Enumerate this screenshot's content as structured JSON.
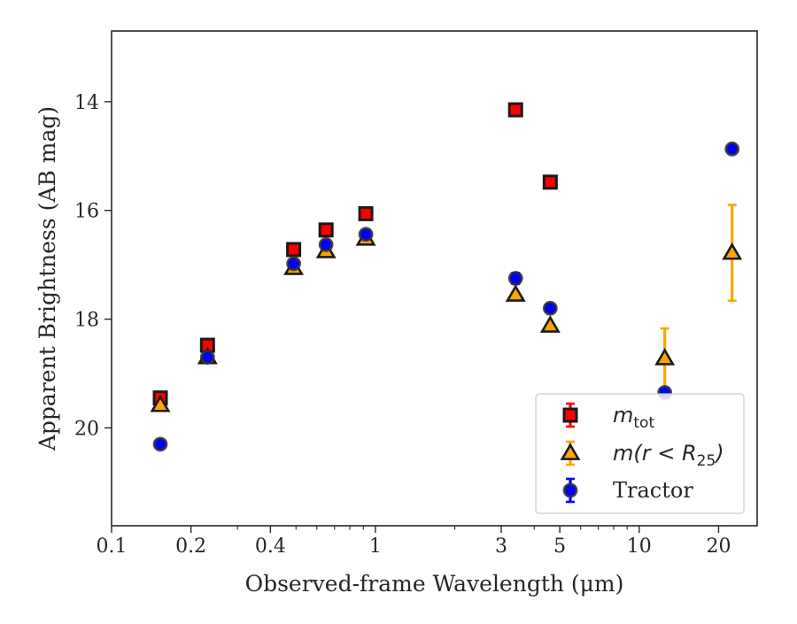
{
  "chart_data": {
    "type": "scatter",
    "xlabel": "Observed-frame Wavelength (μm)",
    "ylabel": "Apparent Brightness (AB mag)",
    "xscale": "log",
    "xlim": [
      0.1,
      28
    ],
    "ylim": [
      21.8,
      12.7
    ],
    "y_inverted": true,
    "x_ticks": [
      0.1,
      0.2,
      0.4,
      1,
      3,
      5,
      10,
      20
    ],
    "x_tick_labels": [
      "0.1",
      "0.2",
      "0.4",
      "1",
      "3",
      "5",
      "10",
      "20"
    ],
    "y_ticks": [
      14,
      16,
      18,
      20
    ],
    "y_tick_labels": [
      "14",
      "16",
      "18",
      "20"
    ],
    "grid": false,
    "legend_position": "bottom-right",
    "series": [
      {
        "name": "m_tot",
        "legend_main": "m",
        "legend_sub": "tot",
        "marker": "square",
        "color": "#ff0000",
        "edge_color": "#1a1a1a",
        "points": [
          {
            "x": 0.153,
            "y": 19.45,
            "err": 0.03
          },
          {
            "x": 0.231,
            "y": 18.48,
            "err": 0.03
          },
          {
            "x": 0.49,
            "y": 16.72,
            "err": 0.02
          },
          {
            "x": 0.65,
            "y": 16.36,
            "err": 0.02
          },
          {
            "x": 0.92,
            "y": 16.06,
            "err": 0.02
          },
          {
            "x": 3.4,
            "y": 14.15,
            "err": 0.02
          },
          {
            "x": 4.6,
            "y": 15.48,
            "err": 0.02
          }
        ]
      },
      {
        "name": "m(r<R_25)",
        "legend_main": "m(r < R",
        "legend_sub": "25",
        "legend_tail": ")",
        "marker": "triangle",
        "color": "#ffa500",
        "edge_color": "#1a1a1a",
        "points": [
          {
            "x": 0.153,
            "y": 19.58,
            "err": 0.04
          },
          {
            "x": 0.231,
            "y": 18.7,
            "err": 0.03
          },
          {
            "x": 0.49,
            "y": 17.06,
            "err": 0.02
          },
          {
            "x": 0.65,
            "y": 16.75,
            "err": 0.02
          },
          {
            "x": 0.92,
            "y": 16.52,
            "err": 0.02
          },
          {
            "x": 3.4,
            "y": 17.55,
            "err": 0.03
          },
          {
            "x": 4.6,
            "y": 18.12,
            "err": 0.04
          },
          {
            "x": 12.5,
            "y": 18.72,
            "err": 0.55
          },
          {
            "x": 22.5,
            "y": 16.78,
            "err": 0.88
          }
        ]
      },
      {
        "name": "Tractor",
        "legend_main": "Tractor",
        "marker": "circle",
        "color": "#0000ff",
        "edge_color": "#333333",
        "points": [
          {
            "x": 0.153,
            "y": 20.3,
            "err": 0.06
          },
          {
            "x": 0.231,
            "y": 18.7,
            "err": 0.04
          },
          {
            "x": 0.49,
            "y": 16.98,
            "err": 0.05
          },
          {
            "x": 0.65,
            "y": 16.63,
            "err": 0.05
          },
          {
            "x": 0.92,
            "y": 16.44,
            "err": 0.05
          },
          {
            "x": 3.4,
            "y": 17.25,
            "err": 0.1
          },
          {
            "x": 4.6,
            "y": 17.8,
            "err": 0.06
          },
          {
            "x": 12.5,
            "y": 19.35,
            "err": 0.08
          },
          {
            "x": 22.5,
            "y": 14.87,
            "err": 0.05
          }
        ]
      }
    ]
  }
}
